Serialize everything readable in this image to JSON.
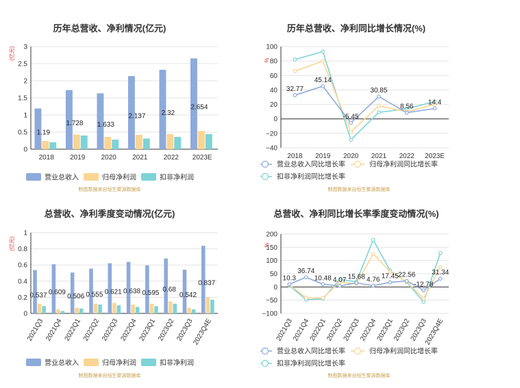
{
  "colors": {
    "revenue": "#8daadb",
    "net_profit": "#fad594",
    "deducted_profit": "#7dd3d6",
    "revenue_line": "#8daadb",
    "net_line": "#fad594",
    "deducted_line": "#7dd3d6"
  },
  "chart_data": [
    {
      "id": "annual-values",
      "type": "bar",
      "title": "历年总营收、净利情况(亿元)",
      "ylabel": "(亿元)",
      "categories": [
        "2018",
        "2019",
        "2020",
        "2021",
        "2022",
        "2023E"
      ],
      "ylim": [
        0,
        3
      ],
      "yticks": [
        "0",
        "0.5",
        "1",
        "1.5",
        "2",
        "2.5",
        "3"
      ],
      "series": [
        {
          "name": "营业总收入",
          "values": [
            1.19,
            1.728,
            1.633,
            2.137,
            2.32,
            2.654
          ],
          "labels": [
            "1.19",
            "1.728",
            "1.633",
            "2.137",
            "2.32",
            "2.654"
          ]
        },
        {
          "name": "归母净利润",
          "values": [
            0.24,
            0.43,
            0.36,
            0.42,
            0.44,
            0.53
          ]
        },
        {
          "name": "扣非净利润",
          "values": [
            0.2,
            0.4,
            0.28,
            0.31,
            0.36,
            0.44
          ]
        }
      ],
      "legend": "bottom",
      "source": "制图数据来自恒生聚源数据库"
    },
    {
      "id": "annual-growth",
      "type": "line",
      "title": "历年总营收、净利同比增长情况(%)",
      "ylabel": "%",
      "categories": [
        "2018",
        "2019",
        "2020",
        "2021",
        "2022",
        "2023E"
      ],
      "ylim": [
        -40,
        100
      ],
      "yticks": [
        "−40",
        "−20",
        "0",
        "20",
        "40",
        "60",
        "80",
        "100"
      ],
      "series": [
        {
          "name": "营业总收入同比增长率",
          "values": [
            32.77,
            45.14,
            -5.45,
            30.85,
            8.56,
            14.4
          ],
          "labels": [
            "32.77",
            "45.14",
            "-5.45",
            "30.85",
            "8.56",
            "14.4"
          ]
        },
        {
          "name": "归母净利润同比增长率",
          "values": [
            66,
            80,
            -18,
            18,
            10,
            20
          ]
        },
        {
          "name": "扣非净利润同比增长率",
          "values": [
            82,
            93,
            -29,
            9,
            14,
            24
          ]
        }
      ],
      "legend": "bottom",
      "source": "制图数据来自恒生聚源数据库"
    },
    {
      "id": "quarterly-values",
      "type": "bar",
      "title": "总营收、净利季度变动情况(亿元)",
      "ylabel": "(亿元)",
      "categories": [
        "2021Q3",
        "2021Q4",
        "2022Q1",
        "2022Q2",
        "2022Q3",
        "2022Q4",
        "2023Q1",
        "2023Q2",
        "2023Q3",
        "2023Q4E"
      ],
      "ylim": [
        0,
        1
      ],
      "yticks": [
        "0",
        "0.2",
        "0.4",
        "0.6",
        "0.8",
        "1"
      ],
      "series": [
        {
          "name": "营业总收入",
          "values": [
            0.537,
            0.609,
            0.506,
            0.555,
            0.621,
            0.638,
            0.595,
            0.68,
            0.542,
            0.837
          ],
          "labels": [
            "0.537",
            "0.609",
            "0.506",
            "0.555",
            "0.621",
            "0.638",
            "0.595",
            "0.68",
            "0.542",
            "0.837"
          ]
        },
        {
          "name": "归母净利润",
          "values": [
            0.12,
            0.05,
            0.07,
            0.12,
            0.13,
            0.11,
            0.12,
            0.15,
            0.07,
            0.2
          ]
        },
        {
          "name": "扣非净利润",
          "values": [
            0.09,
            0.03,
            0.06,
            0.11,
            0.1,
            0.08,
            0.09,
            0.12,
            0.05,
            0.17
          ]
        }
      ],
      "legend": "bottom",
      "source": "制图数据来自恒生聚源数据库"
    },
    {
      "id": "quarterly-growth",
      "type": "line",
      "title": "总营收、净利同比增长率季度变动情况(%)",
      "ylabel": "%",
      "categories": [
        "2021Q3",
        "2021Q4",
        "2022Q1",
        "2022Q2",
        "2022Q3",
        "2022Q4",
        "2023Q1",
        "2023Q2",
        "2023Q3",
        "2023Q4E"
      ],
      "ylim": [
        -100,
        200
      ],
      "yticks": [
        "−100",
        "−50",
        "0",
        "50",
        "100",
        "150",
        "200"
      ],
      "series": [
        {
          "name": "营业总收入同比增长率",
          "values": [
            10.3,
            36.74,
            10.48,
            4.07,
            15.68,
            4.76,
            17.45,
            22.56,
            -12.78,
            31.34
          ],
          "labels": [
            "10.3",
            "36.74",
            "10.48",
            "4.07",
            "15.68",
            "4.76",
            "17.45",
            "22.56",
            "-12.78",
            "31.34"
          ]
        },
        {
          "name": "归母净利润同比增长率",
          "values": [
            8,
            -40,
            -42,
            18,
            12,
            125,
            58,
            20,
            -44,
            75
          ]
        },
        {
          "name": "扣非净利润同比增长率",
          "values": [
            6,
            -48,
            -45,
            28,
            20,
            178,
            62,
            18,
            -56,
            128
          ]
        }
      ],
      "legend": "bottom",
      "source": "制图数据来自恒生聚源数据库"
    }
  ]
}
